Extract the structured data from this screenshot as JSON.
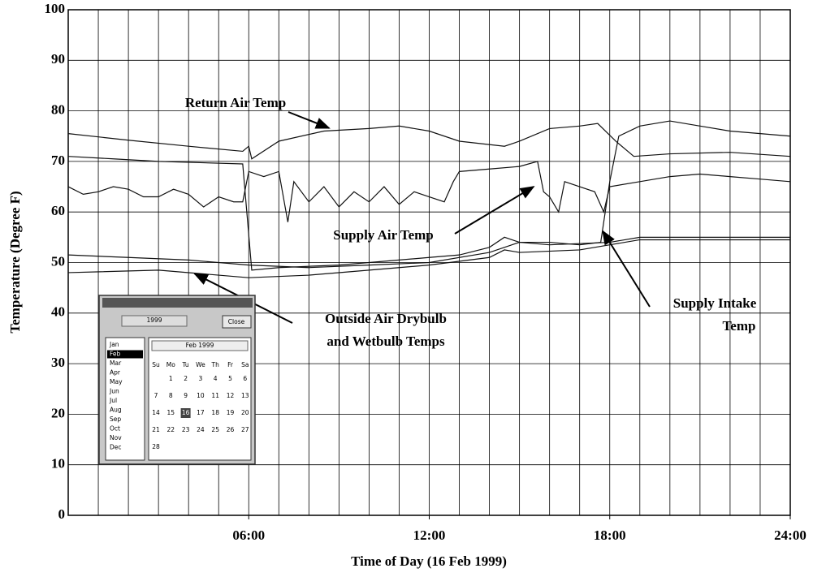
{
  "chart_data": {
    "type": "line",
    "ylabel": "Temperature (Degree F)",
    "xlabel": "Time of Day (16 Feb 1999)",
    "xlim": [
      0,
      24
    ],
    "ylim": [
      0,
      100
    ],
    "xticks": [
      {
        "value": 6,
        "label": "06:00"
      },
      {
        "value": 12,
        "label": "12:00"
      },
      {
        "value": 18,
        "label": "18:00"
      },
      {
        "value": 24,
        "label": "24:00"
      }
    ],
    "xgrid": [
      1,
      2,
      3,
      4,
      5,
      6,
      7,
      8,
      9,
      10,
      11,
      12,
      13,
      14,
      15,
      16,
      17,
      18,
      19,
      20,
      21,
      22,
      23
    ],
    "yticks": [
      0,
      10,
      20,
      30,
      40,
      50,
      60,
      70,
      80,
      90,
      100
    ],
    "grid": true,
    "series": [
      {
        "color": "#111111",
        "x": [
          0,
          2,
          4,
          5.8,
          6.0,
          6.1,
          7,
          8.5,
          10,
          11,
          12,
          13,
          14.5,
          15,
          16,
          17,
          17.6,
          18.2,
          18.8,
          20,
          22,
          24
        ],
        "values": [
          75.5,
          74.2,
          73,
          72,
          73,
          70.5,
          74,
          76,
          76.5,
          77,
          76,
          74,
          73,
          74,
          76.5,
          77,
          77.5,
          74,
          71,
          71.5,
          71.8,
          71
        ]
      },
      {
        "color": "#111111",
        "x": [
          0,
          1.5,
          3,
          5.8,
          6.1,
          7,
          9,
          11,
          12,
          13,
          14,
          14.5,
          15,
          16,
          17,
          17.7,
          18.0,
          18.3,
          19,
          20,
          21,
          22,
          23,
          24
        ],
        "values": [
          71,
          70.5,
          70,
          69.5,
          48.5,
          49,
          49.5,
          50.5,
          51,
          51.5,
          53,
          55,
          54,
          54,
          53.5,
          54,
          66,
          75,
          77,
          78,
          77,
          76,
          75.5,
          75
        ]
      },
      {
        "color": "#111111",
        "x": [
          0,
          0.5,
          1,
          1.5,
          2,
          2.5,
          3,
          3.5,
          4,
          4.5,
          5,
          5.5,
          5.8,
          6,
          6.5,
          7,
          7.3,
          7.5,
          8,
          8.5,
          9,
          9.5,
          10,
          10.5,
          11,
          11.5,
          12,
          12.5,
          12.8,
          13,
          14,
          15,
          15.6,
          15.8,
          16,
          16.3,
          16.5,
          17,
          17.5,
          17.8,
          18,
          19,
          20,
          21,
          22,
          23,
          24
        ],
        "values": [
          65,
          63.5,
          64,
          65,
          64.5,
          63,
          63,
          64.5,
          63.5,
          61,
          63,
          62,
          62,
          68,
          67,
          68,
          58,
          66,
          62,
          65,
          61,
          64,
          62,
          65,
          61.5,
          64,
          63,
          62,
          66,
          68,
          68.5,
          69,
          70,
          64,
          63,
          60,
          66,
          65,
          64,
          60,
          65,
          66,
          67,
          67.5,
          67,
          66.5,
          66
        ]
      },
      {
        "color": "#111111",
        "x": [
          0,
          2,
          4,
          6,
          8,
          10,
          12,
          14,
          15,
          16,
          18,
          19,
          24
        ],
        "values": [
          51.5,
          51,
          50.5,
          49.5,
          49,
          49.5,
          50,
          52,
          54,
          53.5,
          54,
          55,
          55
        ]
      },
      {
        "color": "#111111",
        "x": [
          0,
          3,
          5,
          6,
          8,
          10,
          12,
          14,
          14.5,
          15,
          17,
          18,
          19,
          24
        ],
        "values": [
          48,
          48.5,
          47.5,
          47,
          47.5,
          48.5,
          49.5,
          51,
          52.5,
          52,
          52.5,
          53.5,
          54.5,
          54.5
        ]
      }
    ],
    "annotations": [
      {
        "text": [
          "Return Air Temp"
        ],
        "x": 8.67,
        "y": 76.6
      },
      {
        "text": [
          "Supply Air Temp"
        ],
        "x": 15.47,
        "y": 65
      },
      {
        "text": [
          "Supply Intake",
          "Temp"
        ],
        "x": 17.77,
        "y": 56.2
      },
      {
        "text": [
          "Outside Air Drybulb",
          "and Wetbulb Temps"
        ],
        "x": 4.2,
        "y": 47.8
      }
    ]
  },
  "calendar": {
    "year": "1999",
    "close": "Close",
    "months": [
      "Jan",
      "Feb",
      "Mar",
      "Apr",
      "May",
      "Jun",
      "Jul",
      "Aug",
      "Sep",
      "Oct",
      "Nov",
      "Dec"
    ],
    "month_title": "Feb 1999",
    "weekdays": [
      "Su",
      "Mo",
      "Tu",
      "We",
      "Th",
      "Fr",
      "Sa"
    ],
    "weeks": [
      [
        null,
        1,
        2,
        3,
        4,
        5,
        6
      ],
      [
        7,
        8,
        9,
        10,
        11,
        12,
        13
      ],
      [
        14,
        15,
        16,
        17,
        18,
        19,
        20
      ],
      [
        21,
        22,
        23,
        24,
        25,
        26,
        27
      ],
      [
        28
      ]
    ],
    "selected_month": 1,
    "selected_day": 16
  }
}
